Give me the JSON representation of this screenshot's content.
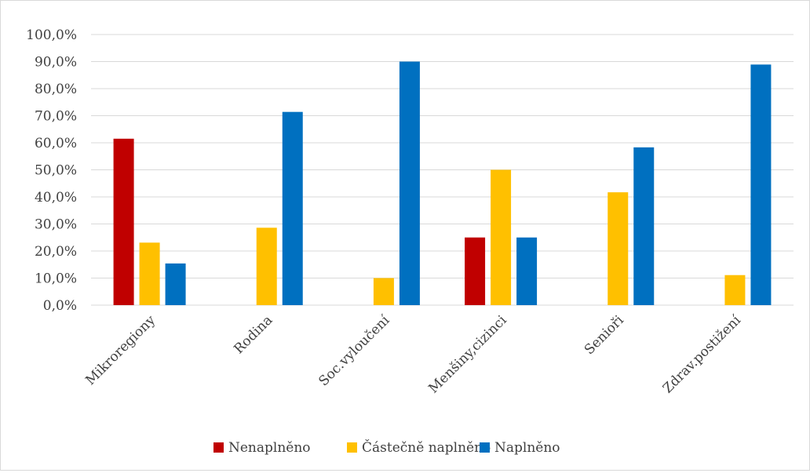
{
  "chart_data": {
    "type": "bar",
    "title": "",
    "xlabel": "",
    "ylabel": "",
    "categories": [
      "Mikroregiony",
      "Rodina",
      "Soc.vyloučení",
      "Menšiny,cizinci",
      "Senioři",
      "Zdrav.postižení"
    ],
    "series": [
      {
        "name": "Nenaplněno",
        "color": "#c00000",
        "values": [
          61.5,
          0,
          0,
          25.0,
          0,
          0
        ]
      },
      {
        "name": "Částečně naplněno",
        "color": "#ffc000",
        "values": [
          23.1,
          28.6,
          10.0,
          50.0,
          41.7,
          11.1
        ]
      },
      {
        "name": "Naplněno",
        "color": "#0070c0",
        "values": [
          15.4,
          71.4,
          90.0,
          25.0,
          58.3,
          88.9
        ]
      }
    ],
    "ylim": [
      0,
      100
    ],
    "yticks": [
      "0,0%",
      "10,0%",
      "20,0%",
      "30,0%",
      "40,0%",
      "50,0%",
      "60,0%",
      "70,0%",
      "80,0%",
      "90,0%",
      "100,0%"
    ],
    "grid": true,
    "legend_position": "bottom"
  }
}
